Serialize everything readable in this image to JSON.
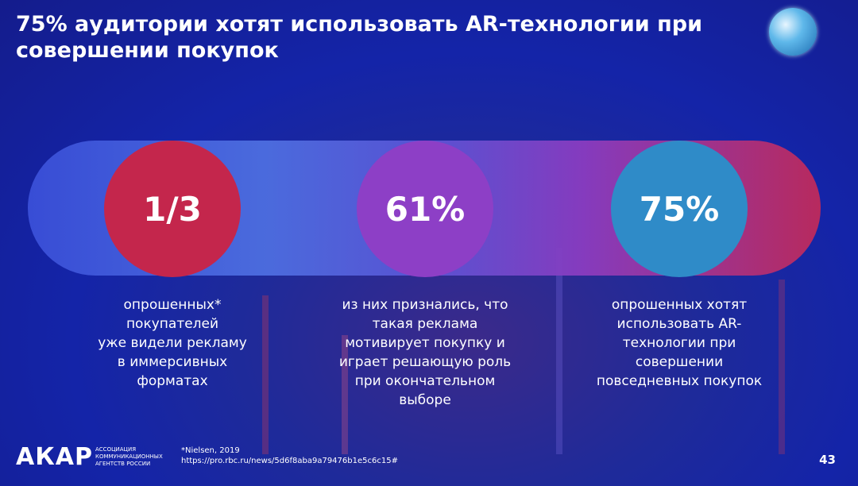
{
  "header": {
    "title": [
      "75% аудитории хотят использовать AR-технологии при",
      "совершении покупок"
    ]
  },
  "stats": [
    {
      "value": "1/3",
      "description": [
        "опрошенных*",
        "покупателей",
        "уже видели рекламу",
        "в иммерсивных",
        "форматах"
      ]
    },
    {
      "value": "61%",
      "description": [
        "из них признались, что",
        "такая реклама",
        "мотивирует покупку и",
        "играет решающую роль",
        "при окончательном",
        "выборе"
      ]
    },
    {
      "value": "75%",
      "description": [
        "опрошенных хотят",
        "использовать AR-",
        "технологии при",
        "совершении",
        "повседневных покупок"
      ]
    }
  ],
  "footer": {
    "logo": "АКАР",
    "logo_caption": [
      "АССОЦИАЦИЯ",
      "КОММУНИКАЦИОННЫХ",
      "АГЕНТСТВ РОССИИ"
    ],
    "footnote": [
      "*Nielsen, 2019",
      "https://pro.rbc.ru/news/5d6f8aba9a79476b1e5c6c15#"
    ],
    "page_number": "43"
  }
}
